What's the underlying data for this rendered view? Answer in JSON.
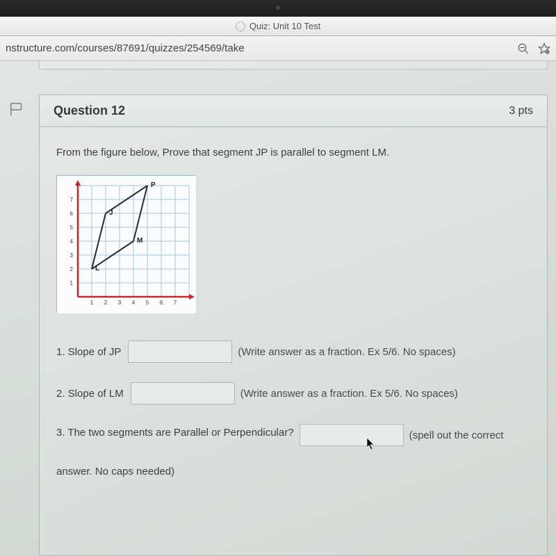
{
  "window": {
    "tab_title": "Quiz: Unit 10 Test",
    "url": "nstructure.com/courses/87691/quizzes/254569/take"
  },
  "question": {
    "number_label": "Question 12",
    "points": "3 pts",
    "prompt": "From the figure below, Prove that segment JP is parallel to segment LM.",
    "figure": {
      "type": "line-plot-on-grid",
      "background_color": "#fafcfd",
      "grid_color": "#a8c5d6",
      "axis_color": "#c42828",
      "xlim": [
        0,
        8
      ],
      "ylim": [
        0,
        8
      ],
      "xtick_step": 1,
      "ytick_step": 1,
      "x_tick_labels": [
        "1",
        "2",
        "3",
        "4",
        "5",
        "6",
        "7"
      ],
      "y_tick_labels": [
        "1",
        "2",
        "3",
        "4",
        "5",
        "6",
        "7"
      ],
      "tick_label_color": "#3a3a3a",
      "tick_fontsize": 8,
      "points": {
        "J": {
          "x": 2,
          "y": 6,
          "label": "J"
        },
        "P": {
          "x": 5,
          "y": 8,
          "label": "P"
        },
        "L": {
          "x": 1,
          "y": 2,
          "label": "L"
        },
        "M": {
          "x": 4,
          "y": 4,
          "label": "M"
        }
      },
      "segments": [
        {
          "from": "J",
          "to": "P"
        },
        {
          "from": "P",
          "to": "M"
        },
        {
          "from": "M",
          "to": "L"
        },
        {
          "from": "L",
          "to": "J"
        }
      ],
      "segment_color": "#2b2b2b",
      "segment_width": 2,
      "point_label_fontsize": 10,
      "point_label_weight": "bold",
      "point_label_color": "#222"
    },
    "items": [
      {
        "label": "1. Slope of JP",
        "input_value": "",
        "hint": "(Write answer as a fraction. Ex 5/6. No spaces)"
      },
      {
        "label": "2. Slope of LM",
        "input_value": "",
        "hint": "(Write answer as a fraction. Ex 5/6. No spaces)"
      }
    ],
    "item3_text": "3. The two segments are Parallel or Perpendicular?",
    "item3_value": "",
    "item3_hint": "(spell out the correct",
    "item3_cont": "answer. No caps needed)"
  }
}
